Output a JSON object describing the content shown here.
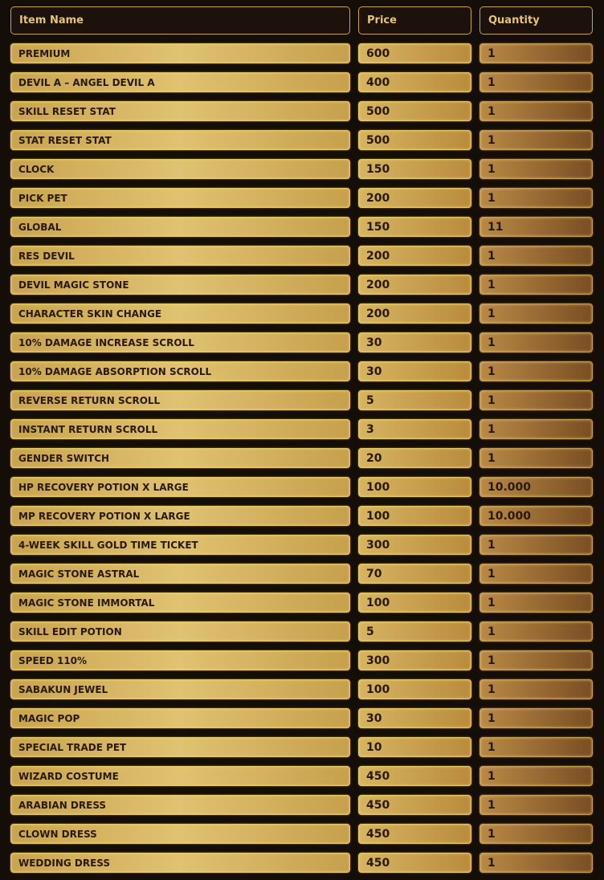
{
  "header": {
    "name": "Item Name",
    "price": "Price",
    "quantity": "Quantity"
  },
  "rows": [
    {
      "name": "PREMIUM",
      "price": "600",
      "quantity": "1"
    },
    {
      "name": "DEVIL A – ANGEL DEVIL A",
      "price": "400",
      "quantity": "1"
    },
    {
      "name": "SKILL RESET STAT",
      "price": "500",
      "quantity": "1"
    },
    {
      "name": "STAT RESET STAT",
      "price": "500",
      "quantity": "1"
    },
    {
      "name": "CLOCK",
      "price": "150",
      "quantity": "1"
    },
    {
      "name": "PICK PET",
      "price": "200",
      "quantity": "1"
    },
    {
      "name": "GLOBAL",
      "price": "150",
      "quantity": "11"
    },
    {
      "name": "RES DEVIL",
      "price": "200",
      "quantity": "1"
    },
    {
      "name": "DEVIL MAGIC STONE",
      "price": "200",
      "quantity": "1"
    },
    {
      "name": "CHARACTER SKIN CHANGE",
      "price": "200",
      "quantity": "1"
    },
    {
      "name": "10% DAMAGE INCREASE SCROLL",
      "price": "30",
      "quantity": "1"
    },
    {
      "name": "10% DAMAGE ABSORPTION SCROLL",
      "price": "30",
      "quantity": "1"
    },
    {
      "name": "REVERSE RETURN SCROLL",
      "price": "5",
      "quantity": "1"
    },
    {
      "name": "INSTANT RETURN SCROLL",
      "price": "3",
      "quantity": "1"
    },
    {
      "name": "GENDER SWITCH",
      "price": "20",
      "quantity": "1"
    },
    {
      "name": "HP RECOVERY POTION X LARGE",
      "price": "100",
      "quantity": "10.000"
    },
    {
      "name": "MP RECOVERY POTION X LARGE",
      "price": "100",
      "quantity": "10.000"
    },
    {
      "name": "4-WEEK SKILL GOLD TIME TICKET",
      "price": "300",
      "quantity": "1"
    },
    {
      "name": "MAGIC STONE ASTRAL",
      "price": "70",
      "quantity": "1"
    },
    {
      "name": "MAGIC STONE IMMORTAL",
      "price": "100",
      "quantity": "1"
    },
    {
      "name": "SKILL EDIT POTION",
      "price": "5",
      "quantity": "1"
    },
    {
      "name": "SPEED 110%",
      "price": "300",
      "quantity": "1"
    },
    {
      "name": "SABAKUN JEWEL",
      "price": "100",
      "quantity": "1"
    },
    {
      "name": "MAGIC POP",
      "price": "30",
      "quantity": "1"
    },
    {
      "name": "SPECIAL TRADE PET",
      "price": "10",
      "quantity": "1"
    },
    {
      "name": "WIZARD COSTUME",
      "price": "450",
      "quantity": "1"
    },
    {
      "name": "ARABIAN DRESS",
      "price": "450",
      "quantity": "1"
    },
    {
      "name": "CLOWN DRESS",
      "price": "450",
      "quantity": "1"
    },
    {
      "name": "WEDDING DRESS",
      "price": "450",
      "quantity": "1"
    }
  ]
}
